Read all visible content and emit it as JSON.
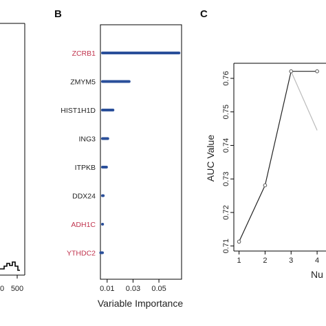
{
  "panels": {
    "a": {
      "tick_label": "500",
      "tick_label_partial": "0"
    },
    "b": {
      "letter": "B"
    },
    "c": {
      "letter": "C"
    }
  },
  "chart_data": [
    {
      "panel": "B",
      "type": "bar",
      "orientation": "horizontal",
      "categories": [
        "ZCRB1",
        "ZMYM5",
        "HIST1H1D",
        "ING3",
        "ITPKB",
        "DDX24",
        "ADH1C",
        "YTHDC2"
      ],
      "category_colors": [
        "#c0334d",
        "#222222",
        "#222222",
        "#222222",
        "#222222",
        "#222222",
        "#c0334d",
        "#c0334d"
      ],
      "values": [
        0.0655,
        0.027,
        0.0145,
        0.0105,
        0.0095,
        0.007,
        0.0065,
        0.005
      ],
      "bar_color": "#2a4f9a",
      "xlabel": "Variable Importance",
      "ylabel": "",
      "xlim": [
        0.0048,
        0.0675
      ],
      "xticks": [
        0.01,
        0.03,
        0.05
      ],
      "xtick_labels": [
        "0.01",
        "0.03",
        "0.05"
      ]
    },
    {
      "panel": "C",
      "type": "line",
      "x": [
        1,
        2,
        3,
        4
      ],
      "series": [
        {
          "values": [
            0.7113,
            0.7281,
            0.7621,
            0.7621
          ],
          "color": "#222222"
        },
        {
          "values": [
            null,
            null,
            0.7621,
            0.7445
          ],
          "color": "#bbbbbb"
        }
      ],
      "xlabel": "Nu",
      "ylabel": "AUC Value",
      "xlim": [
        0.8,
        4.5
      ],
      "ylim": [
        0.7085,
        0.7645
      ],
      "yticks": [
        0.71,
        0.72,
        0.73,
        0.74,
        0.75,
        0.76
      ],
      "ytick_labels": [
        "0.71",
        "0.72",
        "0.73",
        "0.74",
        "0.75",
        "0.76"
      ],
      "xticks": [
        1,
        2,
        3,
        4
      ],
      "xtick_labels": [
        "1",
        "2",
        "3",
        "4"
      ]
    }
  ]
}
